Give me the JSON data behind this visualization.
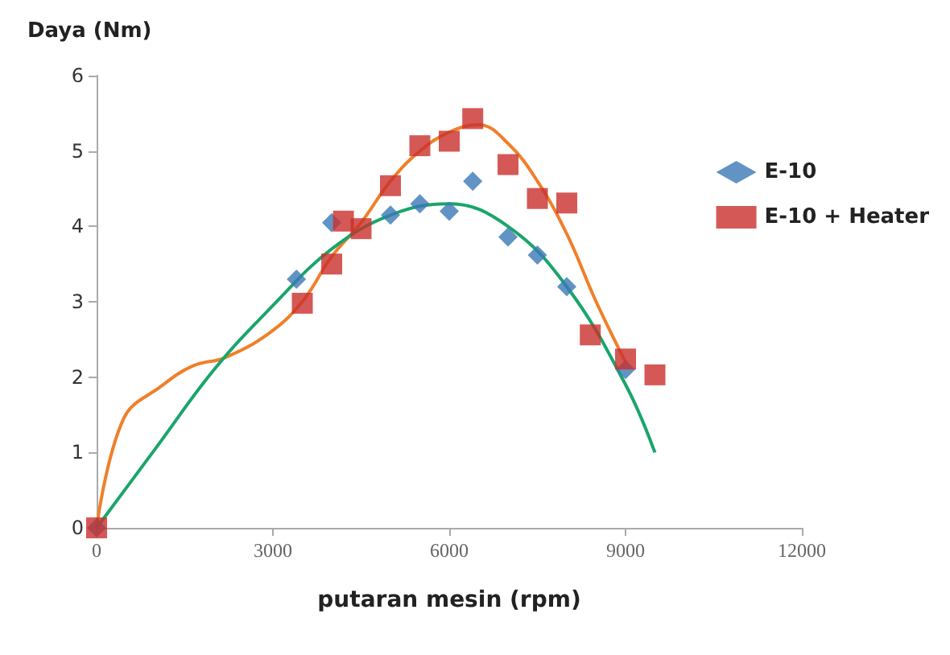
{
  "chart_data": {
    "type": "scatter",
    "xlabel": "putaran mesin (rpm)",
    "ylabel": "Daya (Nm)",
    "xlim": [
      0,
      12000
    ],
    "xticks": [
      0,
      3000,
      6000,
      9000,
      12000
    ],
    "ylim": [
      0,
      6
    ],
    "yticks": [
      0,
      1,
      2,
      3,
      4,
      5,
      6
    ],
    "grid": false,
    "legend": "right",
    "series": [
      {
        "type": "line",
        "marker": "none",
        "color": "#f07f2a",
        "x": [
          0,
          460,
          1100,
          1640,
          2190,
          2930,
          3500,
          4000,
          4500,
          5000,
          5500,
          6000,
          6500,
          7000,
          7500,
          8000,
          8500,
          9000
        ],
        "values": [
          0,
          1.45,
          1.88,
          2.15,
          2.26,
          2.58,
          3.0,
          3.6,
          4.05,
          4.6,
          5.0,
          5.25,
          5.35,
          5.1,
          4.6,
          3.9,
          3.0,
          2.2
        ]
      },
      {
        "type": "line",
        "marker": "none",
        "color": "#1aa56b",
        "x": [
          0,
          1000,
          2000,
          3000,
          4000,
          5000,
          6000,
          7000,
          8000,
          9000,
          9500
        ],
        "values": [
          0,
          1.05,
          2.1,
          2.95,
          3.7,
          4.15,
          4.3,
          4.0,
          3.2,
          1.9,
          1.0
        ]
      },
      {
        "name": "E-10",
        "marker": "diamond",
        "color": "#3a78b5",
        "x": [
          0,
          3400,
          4000,
          5000,
          5500,
          6000,
          6400,
          7000,
          7500,
          8000,
          8500,
          9000
        ],
        "values": [
          0,
          3.3,
          4.05,
          4.15,
          4.3,
          4.2,
          4.6,
          3.86,
          3.62,
          3.2,
          null,
          2.1
        ]
      },
      {
        "name": "E-10 + Heater",
        "marker": "square",
        "color": "#c9302c",
        "x": [
          0,
          3500,
          4000,
          4200,
          4500,
          5000,
          5500,
          6000,
          6400,
          7000,
          7500,
          8000,
          8400,
          9000,
          9500
        ],
        "values": [
          0,
          2.98,
          3.5,
          4.07,
          3.97,
          4.54,
          5.07,
          5.13,
          5.43,
          4.82,
          4.37,
          4.31,
          2.56,
          2.24,
          2.03
        ]
      }
    ]
  }
}
